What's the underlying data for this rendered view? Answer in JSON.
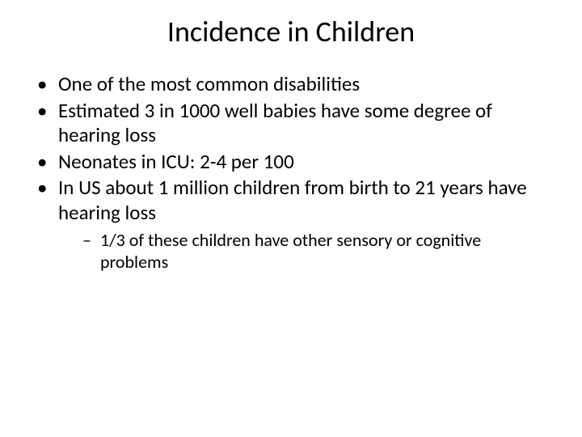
{
  "title": "Incidence in Children",
  "bullets": [
    {
      "text": "One of the most common disabilities"
    },
    {
      "text": "Estimated 3 in 1000 well babies have some degree of hearing loss"
    },
    {
      "text": "Neonates in ICU: 2-4 per 100"
    },
    {
      "text": "In US about 1 million children from birth to 21 years have hearing loss",
      "sub": [
        {
          "text": "1/3 of these children have other sensory or cognitive problems"
        }
      ]
    }
  ]
}
